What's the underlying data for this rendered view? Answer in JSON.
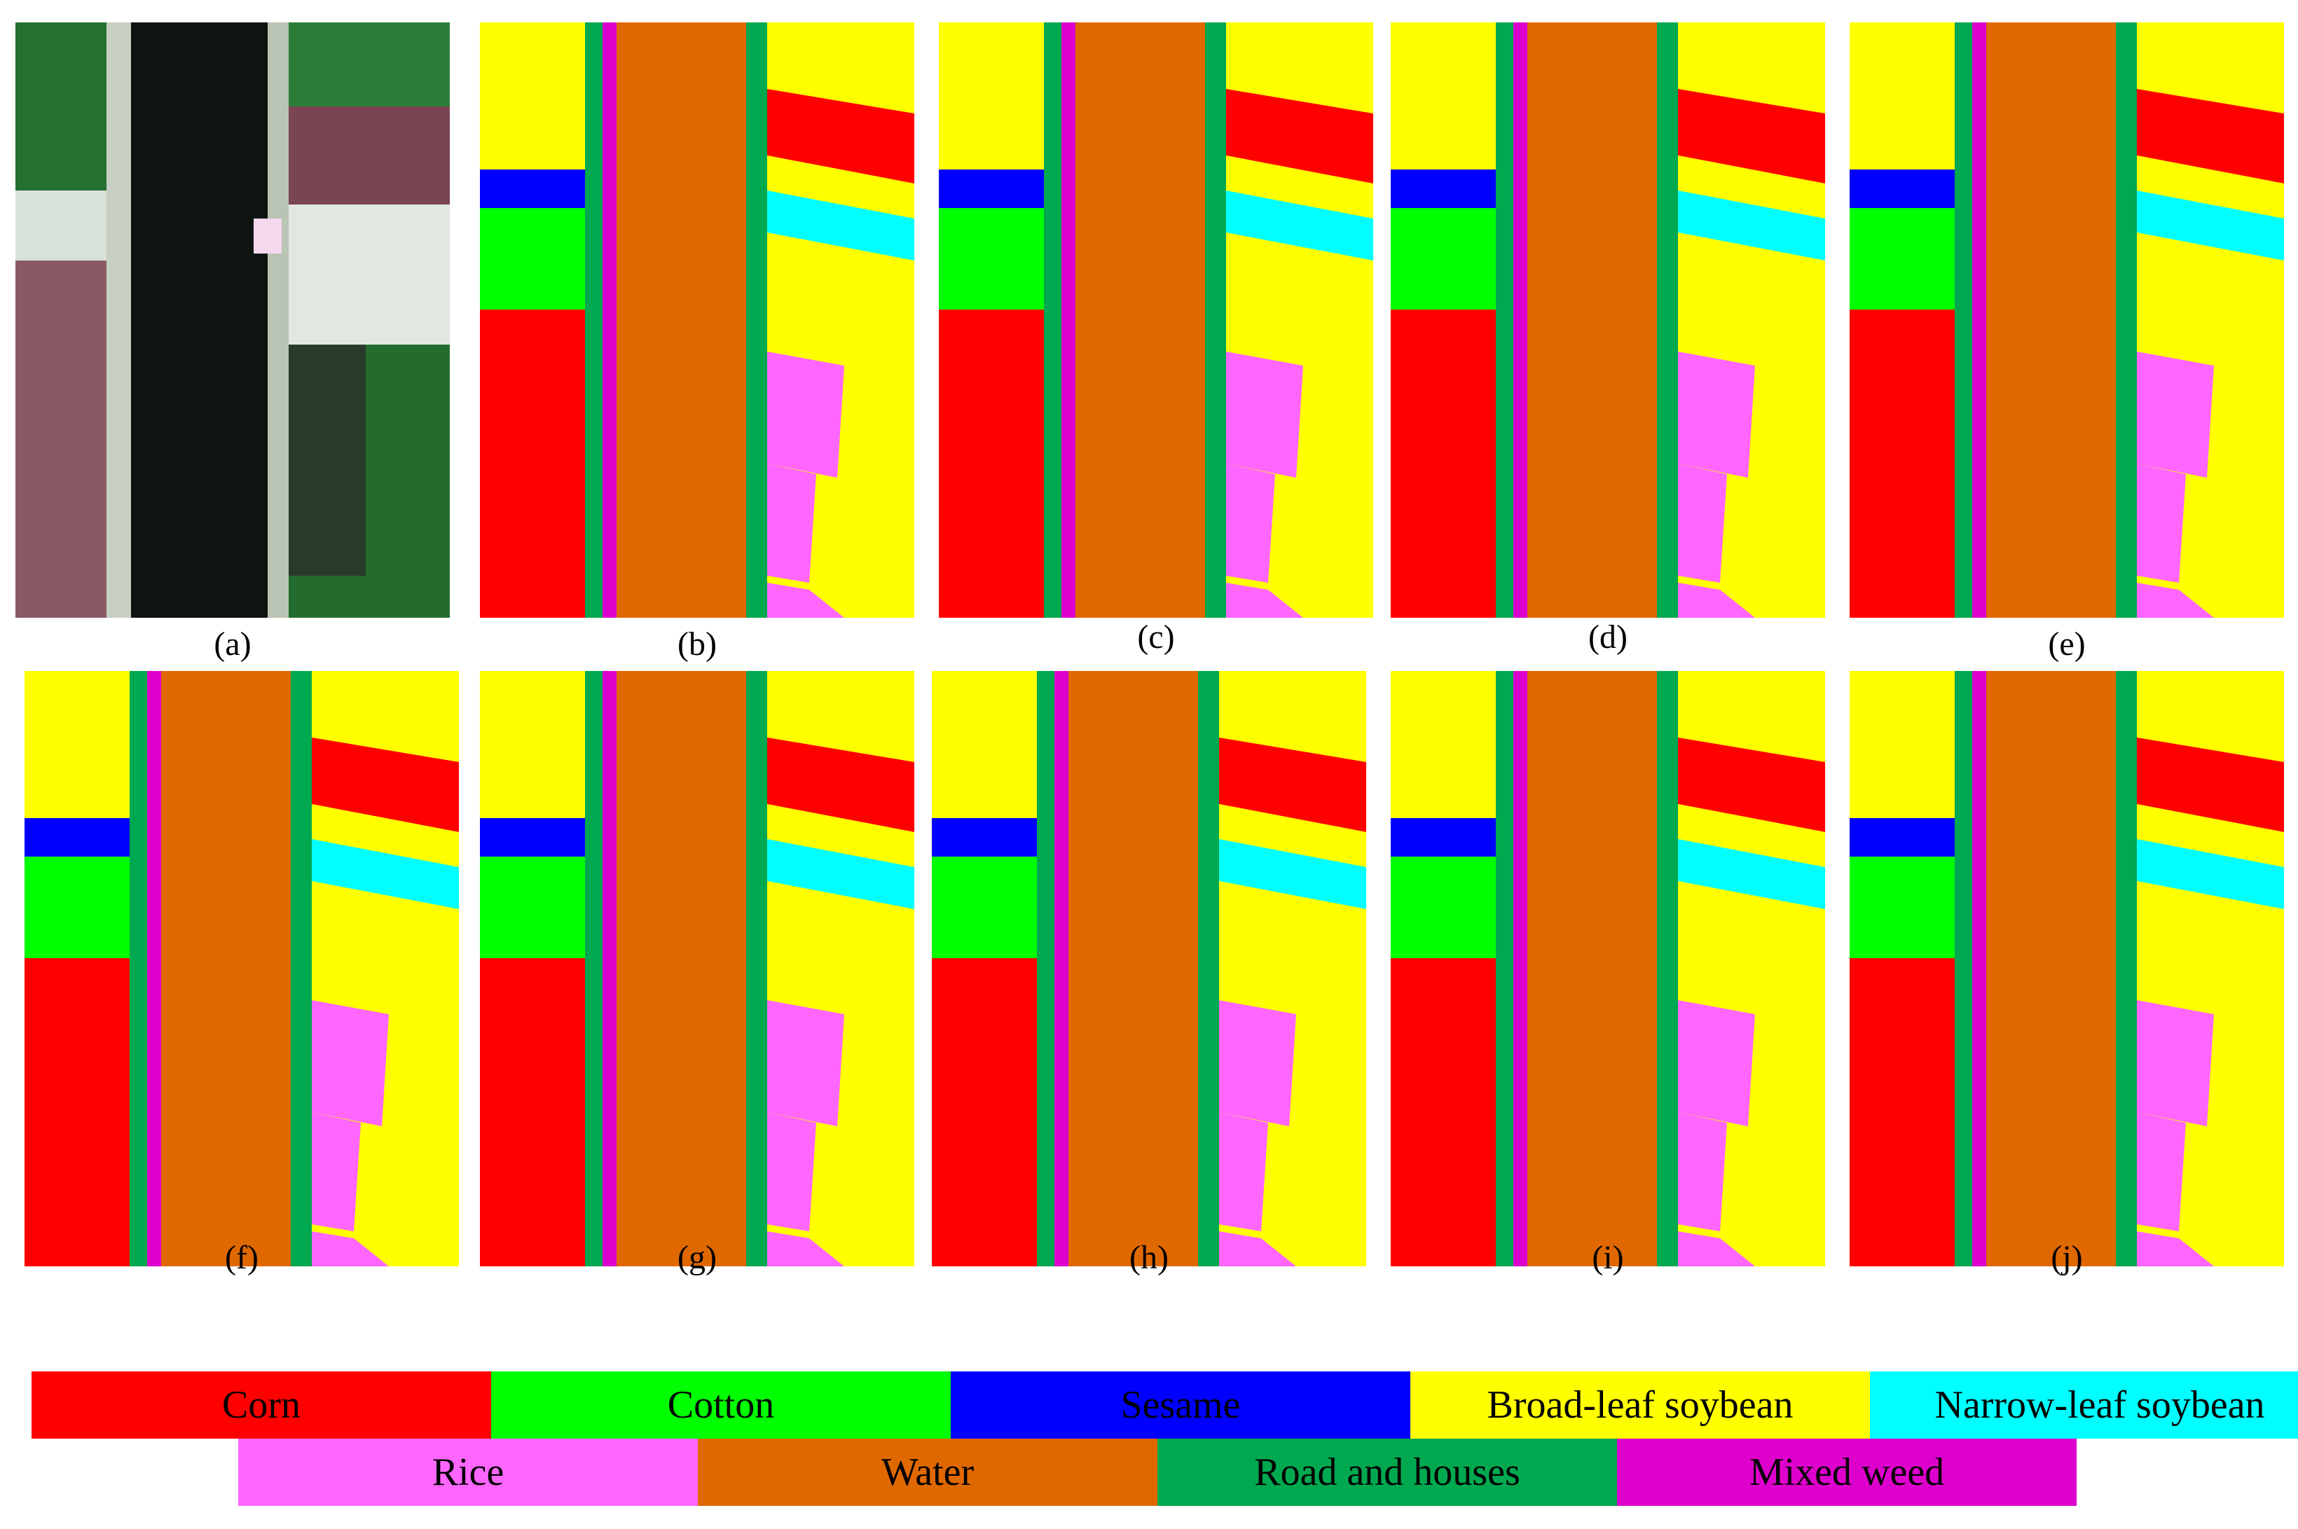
{
  "panels": [
    {
      "label": "(a)",
      "kind": "rgb"
    },
    {
      "label": "(b)",
      "kind": "map"
    },
    {
      "label": "(c)",
      "kind": "map"
    },
    {
      "label": "(d)",
      "kind": "map"
    },
    {
      "label": "(e)",
      "kind": "map"
    },
    {
      "label": "(f)",
      "kind": "map"
    },
    {
      "label": "(g)",
      "kind": "map"
    },
    {
      "label": "(h)",
      "kind": "map"
    },
    {
      "label": "(i)",
      "kind": "map"
    },
    {
      "label": "(j)",
      "kind": "map"
    }
  ],
  "legend": [
    {
      "label": "Corn",
      "color": "#ff0000"
    },
    {
      "label": "Cotton",
      "color": "#00ff00"
    },
    {
      "label": "Sesame",
      "color": "#0000ff"
    },
    {
      "label": "Broad-leaf soybean",
      "color": "#ffff00"
    },
    {
      "label": "Narrow-leaf soybean",
      "color": "#00ffff"
    },
    {
      "label": "Rice",
      "color": "#ff66ff"
    },
    {
      "label": "Water",
      "color": "#e06800"
    },
    {
      "label": "Road and houses",
      "color": "#00a850"
    },
    {
      "label": "Mixed weed",
      "color": "#dd00cc"
    }
  ]
}
